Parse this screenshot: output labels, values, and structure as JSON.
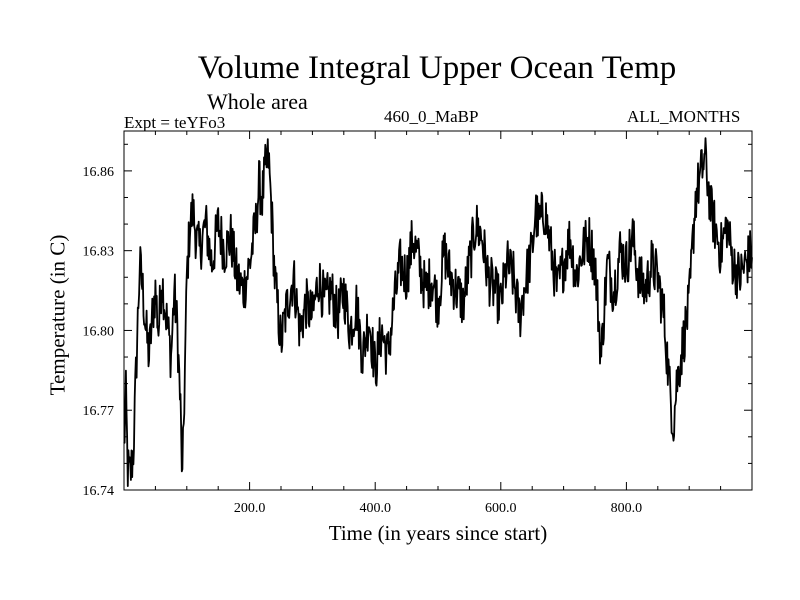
{
  "chart_data": {
    "type": "line",
    "title": "Volume Integral Upper Ocean Temp",
    "subtitle": "Whole area",
    "left_label": "Expt = teYFo3",
    "center_label": "460_0_MaBP",
    "right_label": "ALL_MONTHS",
    "xlabel": "Time (in years since start)",
    "ylabel": "Temperature (in C)",
    "xlim": [
      0,
      1000
    ],
    "ylim": [
      16.74,
      16.875
    ],
    "x_ticks": [
      200,
      400,
      600,
      800
    ],
    "x_tick_labels": [
      "200.0",
      "400.0",
      "600.0",
      "800.0"
    ],
    "y_ticks": [
      16.74,
      16.77,
      16.8,
      16.83,
      16.86
    ],
    "y_tick_labels": [
      "16.74",
      "16.77",
      "16.80",
      "16.83",
      "16.86"
    ],
    "series": [
      {
        "name": "Volume Integral Upper Ocean Temp",
        "color": "#000000",
        "x": [
          0,
          3,
          6,
          10,
          15,
          20,
          25,
          30,
          35,
          40,
          45,
          50,
          55,
          60,
          65,
          70,
          75,
          80,
          85,
          90,
          93,
          95,
          98,
          100,
          105,
          110,
          115,
          120,
          130,
          140,
          150,
          160,
          170,
          180,
          190,
          200,
          210,
          215,
          220,
          225,
          230,
          235,
          240,
          250,
          260,
          270,
          280,
          290,
          300,
          310,
          320,
          330,
          340,
          350,
          360,
          370,
          380,
          390,
          400,
          410,
          420,
          430,
          440,
          450,
          460,
          470,
          480,
          490,
          500,
          510,
          520,
          530,
          540,
          550,
          560,
          570,
          580,
          590,
          600,
          610,
          620,
          630,
          640,
          650,
          655,
          660,
          670,
          680,
          690,
          700,
          710,
          720,
          730,
          740,
          750,
          760,
          765,
          770,
          780,
          790,
          800,
          810,
          820,
          830,
          840,
          850,
          860,
          870,
          875,
          880,
          890,
          900,
          910,
          920,
          925,
          930,
          935,
          940,
          950,
          960,
          970,
          980,
          990,
          1000
        ],
        "y": [
          16.755,
          16.775,
          16.748,
          16.745,
          16.755,
          16.79,
          16.825,
          16.815,
          16.8,
          16.79,
          16.805,
          16.815,
          16.8,
          16.82,
          16.81,
          16.8,
          16.79,
          16.815,
          16.8,
          16.77,
          16.742,
          16.765,
          16.795,
          16.82,
          16.84,
          16.845,
          16.835,
          16.83,
          16.84,
          16.825,
          16.84,
          16.83,
          16.835,
          16.82,
          16.815,
          16.825,
          16.84,
          16.855,
          16.85,
          16.86,
          16.865,
          16.845,
          16.82,
          16.795,
          16.81,
          16.82,
          16.8,
          16.81,
          16.805,
          16.82,
          16.81,
          16.815,
          16.805,
          16.815,
          16.8,
          16.81,
          16.79,
          16.805,
          16.785,
          16.8,
          16.79,
          16.81,
          16.825,
          16.82,
          16.835,
          16.825,
          16.815,
          16.82,
          16.81,
          16.83,
          16.82,
          16.815,
          16.81,
          16.825,
          16.84,
          16.835,
          16.82,
          16.815,
          16.81,
          16.825,
          16.82,
          16.805,
          16.82,
          16.83,
          16.845,
          16.84,
          16.845,
          16.83,
          16.815,
          16.825,
          16.835,
          16.82,
          16.83,
          16.835,
          16.825,
          16.79,
          16.81,
          16.825,
          16.815,
          16.83,
          16.825,
          16.835,
          16.82,
          16.815,
          16.825,
          16.82,
          16.805,
          16.775,
          16.765,
          16.78,
          16.795,
          16.81,
          16.85,
          16.86,
          16.865,
          16.855,
          16.845,
          16.84,
          16.83,
          16.84,
          16.825,
          16.82,
          16.825,
          16.83
        ]
      }
    ]
  }
}
